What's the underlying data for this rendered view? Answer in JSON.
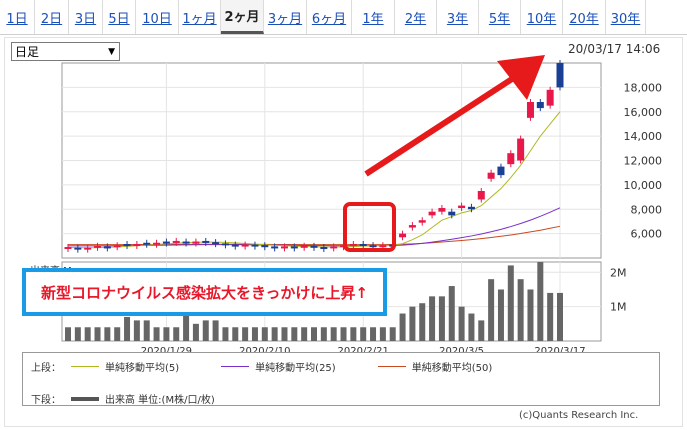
{
  "tabs": [
    {
      "label": "1日"
    },
    {
      "label": "2日"
    },
    {
      "label": "3日"
    },
    {
      "label": "5日"
    },
    {
      "label": "10日"
    },
    {
      "label": "1ヶ月"
    },
    {
      "label": "2ヶ月",
      "active": true
    },
    {
      "label": "3ヶ月"
    },
    {
      "label": "6ヶ月"
    },
    {
      "label": "1年"
    },
    {
      "label": "2年"
    },
    {
      "label": "3年"
    },
    {
      "label": "5年"
    },
    {
      "label": "10年"
    },
    {
      "label": "20年"
    },
    {
      "label": "30年"
    }
  ],
  "select": {
    "value": "日足"
  },
  "datetime": "20/03/17 14:06",
  "banner": "新型コロナウイルス感染拡大をきっかけに上昇↑",
  "volume_label": "出来高 M",
  "legend": {
    "upper_label": "上段：",
    "lower_label": "下段：",
    "ma5": "単純移動平均(5)",
    "ma25": "単純移動平均(25)",
    "ma50": "単純移動平均(50)",
    "volume": "出来高 単位:(M株/口/枚)"
  },
  "colors": {
    "up": "#e8184a",
    "down": "#1a3f94",
    "ma5": "#b0b820",
    "ma25": "#7a2fc8",
    "ma50": "#c84a20",
    "volume": "#666666",
    "arrow": "#e61a1a",
    "banner_border": "#1a9be6"
  },
  "copyright": "(c)Quants Research Inc.",
  "chart_data": {
    "type": "candlestick",
    "x_ticks": [
      "2020/1/29",
      "2020/2/10",
      "2020/2/21",
      "2020/3/5",
      "2020/3/17"
    ],
    "y_ticks": [
      "6,000",
      "8,000",
      "10,000",
      "12,000",
      "14,000",
      "16,000",
      "18,000"
    ],
    "y_range": [
      4000,
      20000
    ],
    "vol_ticks": [
      "2M",
      "1M"
    ],
    "vol_range": [
      0,
      2.3
    ],
    "candles": [
      {
        "o": 4800,
        "c": 4900
      },
      {
        "o": 4850,
        "c": 4750
      },
      {
        "o": 4750,
        "c": 4850
      },
      {
        "o": 4900,
        "c": 5000
      },
      {
        "o": 4950,
        "c": 4850
      },
      {
        "o": 4900,
        "c": 5050
      },
      {
        "o": 5150,
        "c": 5050
      },
      {
        "o": 5050,
        "c": 5150
      },
      {
        "o": 5250,
        "c": 5150
      },
      {
        "o": 5150,
        "c": 5250
      },
      {
        "o": 5350,
        "c": 5250
      },
      {
        "o": 5300,
        "c": 5400
      },
      {
        "o": 5350,
        "c": 5250
      },
      {
        "o": 5250,
        "c": 5350
      },
      {
        "o": 5400,
        "c": 5300
      },
      {
        "o": 5300,
        "c": 5200
      },
      {
        "o": 5200,
        "c": 5100
      },
      {
        "o": 5100,
        "c": 5000
      },
      {
        "o": 5000,
        "c": 5100
      },
      {
        "o": 5100,
        "c": 5000
      },
      {
        "o": 5050,
        "c": 4950
      },
      {
        "o": 4950,
        "c": 4850
      },
      {
        "o": 4850,
        "c": 4950
      },
      {
        "o": 4950,
        "c": 4850
      },
      {
        "o": 4900,
        "c": 5000
      },
      {
        "o": 5000,
        "c": 4900
      },
      {
        "o": 4900,
        "c": 4800
      },
      {
        "o": 4850,
        "c": 4950
      },
      {
        "o": 4950,
        "c": 5050
      },
      {
        "o": 5050,
        "c": 5150
      },
      {
        "o": 5150,
        "c": 5050
      },
      {
        "o": 5050,
        "c": 5000
      },
      {
        "o": 5000,
        "c": 5050
      },
      {
        "o": 5100,
        "c": 5000
      },
      {
        "o": 5700,
        "c": 6000
      },
      {
        "o": 6500,
        "c": 6700
      },
      {
        "o": 6900,
        "c": 7100
      },
      {
        "o": 7500,
        "c": 7800
      },
      {
        "o": 7800,
        "c": 8100
      },
      {
        "o": 7800,
        "c": 7500
      },
      {
        "o": 8100,
        "c": 8300
      },
      {
        "o": 8200,
        "c": 8000
      },
      {
        "o": 8800,
        "c": 9500
      },
      {
        "o": 10500,
        "c": 11000
      },
      {
        "o": 11500,
        "c": 10800
      },
      {
        "o": 11700,
        "c": 12600
      },
      {
        "o": 12000,
        "c": 13800
      },
      {
        "o": 15500,
        "c": 16800
      },
      {
        "o": 16800,
        "c": 16300
      },
      {
        "o": 16500,
        "c": 17800
      },
      {
        "o": 20000,
        "c": 18000
      }
    ],
    "ma5": [
      4850,
      4850,
      4830,
      4850,
      4880,
      4900,
      4950,
      5000,
      5060,
      5110,
      5160,
      5210,
      5260,
      5290,
      5300,
      5300,
      5280,
      5240,
      5190,
      5140,
      5090,
      5050,
      5010,
      4970,
      4940,
      4920,
      4900,
      4900,
      4910,
      4930,
      4970,
      5000,
      5020,
      5040,
      5180,
      5500,
      5900,
      6500,
      7100,
      7400,
      7700,
      7900,
      8300,
      9000,
      9700,
      10600,
      11600,
      12800,
      14000,
      15000,
      16000
    ],
    "ma25": [
      5000,
      5000,
      5000,
      5000,
      5000,
      5010,
      5020,
      5030,
      5040,
      5050,
      5060,
      5070,
      5080,
      5090,
      5100,
      5100,
      5100,
      5100,
      5090,
      5080,
      5070,
      5060,
      5050,
      5040,
      5030,
      5020,
      5020,
      5010,
      5010,
      5010,
      5010,
      5010,
      5020,
      5030,
      5060,
      5120,
      5200,
      5300,
      5420,
      5540,
      5670,
      5810,
      5970,
      6150,
      6350,
      6580,
      6830,
      7110,
      7420,
      7760,
      8120
    ],
    "ma50": [
      5100,
      5100,
      5100,
      5100,
      5100,
      5100,
      5100,
      5110,
      5110,
      5110,
      5120,
      5120,
      5120,
      5130,
      5130,
      5130,
      5130,
      5130,
      5120,
      5120,
      5120,
      5110,
      5110,
      5110,
      5100,
      5100,
      5100,
      5100,
      5100,
      5100,
      5100,
      5100,
      5100,
      5110,
      5130,
      5160,
      5200,
      5250,
      5310,
      5370,
      5440,
      5510,
      5590,
      5680,
      5780,
      5890,
      6010,
      6140,
      6280,
      6440,
      6600
    ],
    "volume": [
      0.4,
      0.4,
      0.4,
      0.4,
      0.4,
      0.4,
      0.7,
      0.6,
      0.6,
      0.4,
      0.4,
      0.4,
      0.8,
      0.5,
      0.6,
      0.6,
      0.4,
      0.4,
      0.4,
      0.4,
      0.4,
      0.4,
      0.4,
      0.4,
      0.4,
      0.4,
      0.4,
      0.4,
      0.4,
      0.4,
      0.4,
      0.4,
      0.4,
      0.4,
      0.8,
      1.0,
      1.1,
      1.3,
      1.3,
      1.6,
      1.0,
      0.8,
      0.6,
      1.8,
      1.5,
      2.2,
      1.8,
      1.5,
      2.3,
      1.4,
      1.4
    ]
  }
}
